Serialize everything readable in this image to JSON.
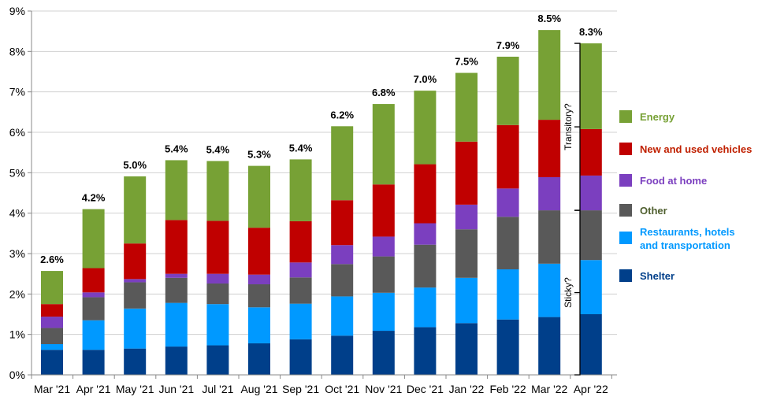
{
  "chart_data": {
    "type": "bar",
    "stacked": true,
    "categories": [
      "Mar '21",
      "Apr '21",
      "May '21",
      "Jun '21",
      "Jul '21",
      "Aug '21",
      "Sep '21",
      "Oct '21",
      "Nov '21",
      "Dec '21",
      "Jan '22",
      "Feb '22",
      "Mar '22",
      "Apr '22"
    ],
    "series": [
      {
        "name": "Shelter",
        "color": "#003F8A",
        "values": [
          0.62,
          0.62,
          0.65,
          0.7,
          0.73,
          0.78,
          0.88,
          0.97,
          1.09,
          1.18,
          1.28,
          1.37,
          1.43,
          1.5
        ]
      },
      {
        "name": "Restaurants, hotels and transportation",
        "color": "#0099FF",
        "values": [
          0.14,
          0.73,
          0.99,
          1.08,
          1.02,
          0.89,
          0.88,
          0.97,
          0.94,
          0.98,
          1.12,
          1.24,
          1.32,
          1.34
        ]
      },
      {
        "name": "Other",
        "color": "#595959",
        "values": [
          0.4,
          0.57,
          0.65,
          0.62,
          0.51,
          0.57,
          0.65,
          0.8,
          0.9,
          1.06,
          1.2,
          1.3,
          1.32,
          1.23
        ]
      },
      {
        "name": "Food at home",
        "color": "#7B3FBF",
        "values": [
          0.28,
          0.12,
          0.08,
          0.1,
          0.24,
          0.24,
          0.37,
          0.47,
          0.49,
          0.53,
          0.61,
          0.7,
          0.82,
          0.86
        ]
      },
      {
        "name": "New and used vehicles",
        "color": "#C00000",
        "values": [
          0.31,
          0.6,
          0.88,
          1.33,
          1.31,
          1.16,
          1.02,
          1.11,
          1.29,
          1.46,
          1.56,
          1.57,
          1.42,
          1.15
        ]
      },
      {
        "name": "Energy",
        "color": "#77A135",
        "values": [
          0.82,
          1.46,
          1.66,
          1.48,
          1.48,
          1.53,
          1.53,
          1.83,
          1.99,
          1.82,
          1.7,
          1.69,
          2.22,
          2.12
        ]
      }
    ],
    "totals": [
      "2.6%",
      "4.2%",
      "5.0%",
      "5.4%",
      "5.4%",
      "5.3%",
      "5.4%",
      "6.2%",
      "6.8%",
      "7.0%",
      "7.5%",
      "7.9%",
      "8.5%",
      "8.3%"
    ],
    "ylim": [
      0,
      9
    ],
    "yticks": [
      "0%",
      "1%",
      "2%",
      "3%",
      "4%",
      "5%",
      "6%",
      "7%",
      "8%",
      "9%"
    ],
    "grid": true,
    "legend_position": "right",
    "legend": [
      {
        "label": "Energy",
        "color": "#77A135",
        "text_color": "#77A135"
      },
      {
        "label": "New and used vehicles",
        "color": "#C00000",
        "text_color": "#C02000"
      },
      {
        "label": "Food at home",
        "color": "#7B3FBF",
        "text_color": "#7B3FBF"
      },
      {
        "label": "Other",
        "color": "#595959",
        "text_color": "#4F5F2F"
      },
      {
        "label": "Restaurants, hotels",
        "label2": "and transportation",
        "color": "#0099FF",
        "text_color": "#0099FF"
      },
      {
        "label": "Shelter",
        "color": "#003F8A",
        "text_color": "#003F8A"
      }
    ],
    "annotations": {
      "transitory": "Transitory?",
      "sticky": "Sticky?"
    }
  }
}
